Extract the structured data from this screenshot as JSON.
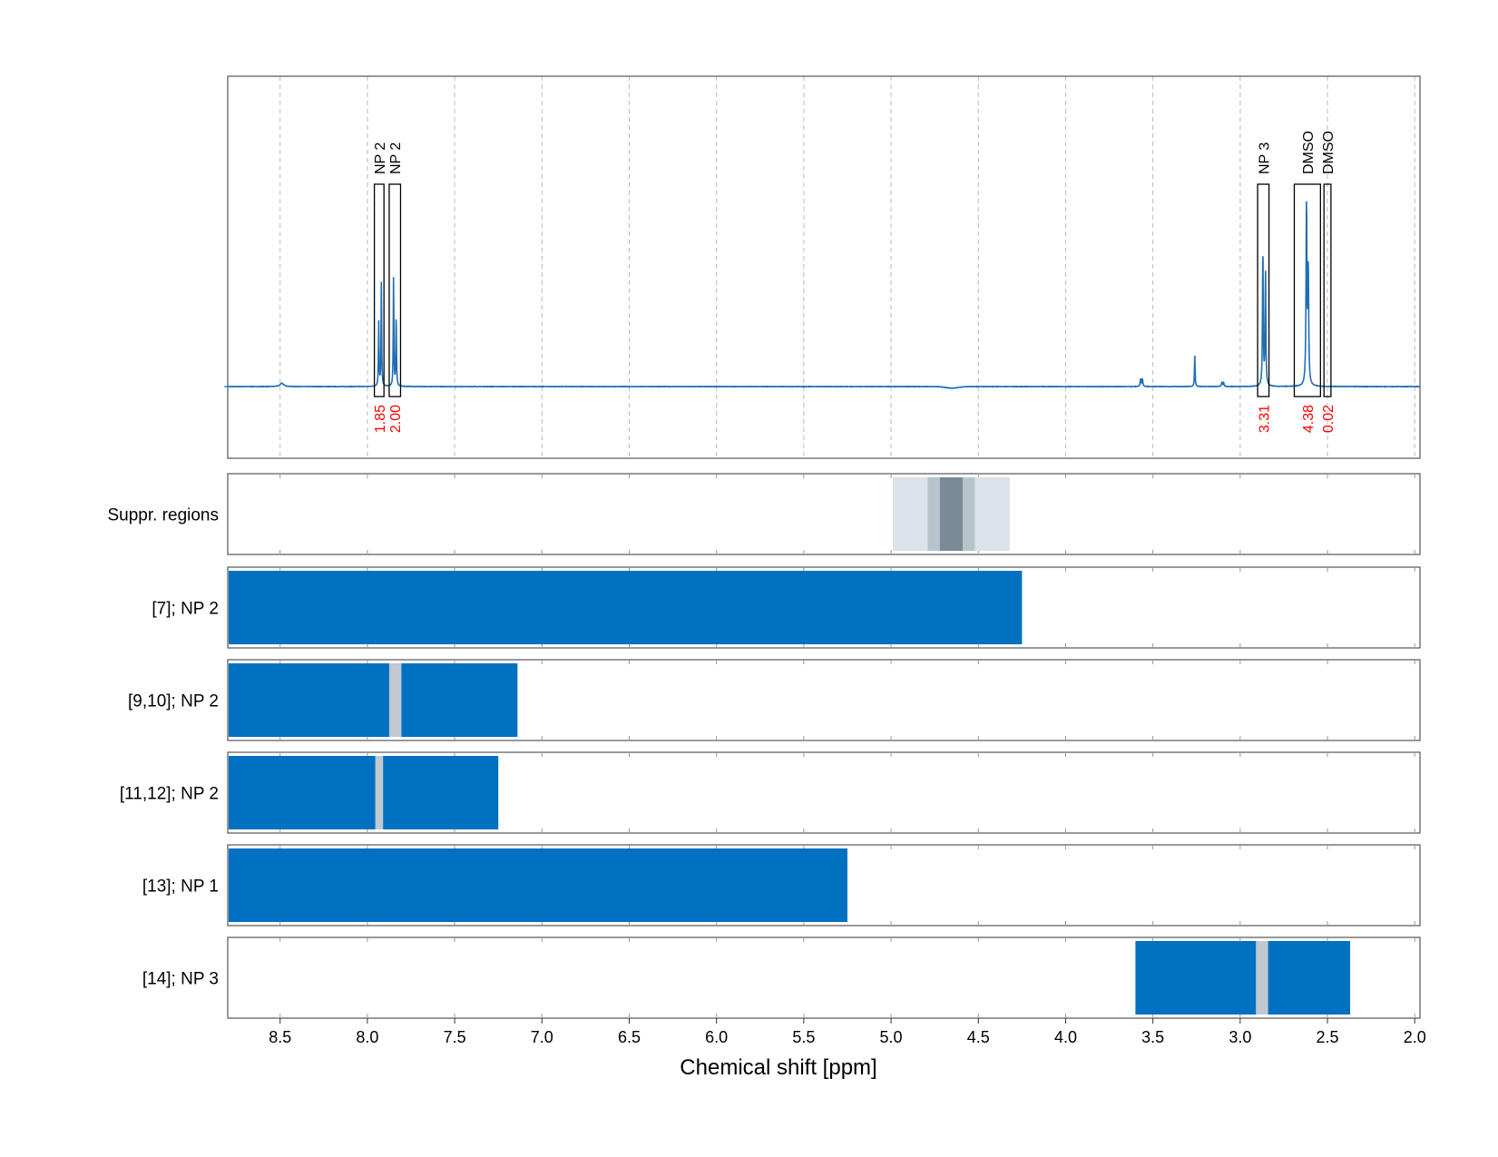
{
  "chart_data": {
    "type": "spectrum-with-bar-tracks",
    "xlabel": "Chemical shift [ppm]",
    "xlim": [
      8.8,
      1.97
    ],
    "x_ticks": [
      8.5,
      8.0,
      7.5,
      7.0,
      6.5,
      6.0,
      5.5,
      5.0,
      4.5,
      4.0,
      3.5,
      3.0,
      2.5,
      2.0
    ],
    "x_tick_labels": [
      "8.5",
      "8.0",
      "7.5",
      "7.0",
      "6.5",
      "6.0",
      "5.5",
      "5.0",
      "4.5",
      "4.0",
      "3.5",
      "3.0",
      "2.5",
      "2.0"
    ],
    "grid": "vertical dashed",
    "colors": {
      "spectrum": "#1f6fb5",
      "bar": "#0070c0",
      "bar_gap": "#c0c8d0",
      "suppr_light": "#dbe2e8",
      "suppr_mid": "#b7c4cc",
      "suppr_dark": "#7a8a96",
      "integral": "#ff0000",
      "frame": "#555555",
      "grid": "#bbbbbb"
    },
    "spectrum": {
      "baseline_noise": 0.002,
      "peaks": [
        {
          "ppm": 8.49,
          "height": 0.018,
          "width": 0.012
        },
        {
          "ppm": 7.935,
          "height": 0.34,
          "width": 0.002
        },
        {
          "ppm": 7.92,
          "height": 0.55,
          "width": 0.002
        },
        {
          "ppm": 7.85,
          "height": 0.58,
          "width": 0.002
        },
        {
          "ppm": 7.835,
          "height": 0.38,
          "width": 0.002
        },
        {
          "ppm": 3.57,
          "height": 0.04,
          "width": 0.003
        },
        {
          "ppm": 3.56,
          "height": 0.04,
          "width": 0.003
        },
        {
          "ppm": 3.26,
          "height": 0.17,
          "width": 0.002
        },
        {
          "ppm": 3.105,
          "height": 0.02,
          "width": 0.003
        },
        {
          "ppm": 3.095,
          "height": 0.02,
          "width": 0.003
        },
        {
          "ppm": 2.87,
          "height": 0.72,
          "width": 0.0025
        },
        {
          "ppm": 2.855,
          "height": 0.6,
          "width": 0.0025
        },
        {
          "ppm": 2.62,
          "height": 0.95,
          "width": 0.003
        },
        {
          "ppm": 2.61,
          "height": 0.6,
          "width": 0.003
        }
      ],
      "dip": {
        "ppm": 4.65,
        "depth": 0.008,
        "width": 0.05
      }
    },
    "annotations": [
      {
        "label": "NP 2",
        "integral": "1.85",
        "range": [
          7.96,
          7.905
        ]
      },
      {
        "label": "NP 2",
        "integral": "2.00",
        "range": [
          7.875,
          7.81
        ]
      },
      {
        "label": "NP 3",
        "integral": "3.31",
        "range": [
          2.9,
          2.835
        ]
      },
      {
        "label": "DMSO",
        "integral": "4.38",
        "range": [
          2.69,
          2.54
        ]
      },
      {
        "label": "DMSO",
        "integral": "0.02",
        "range": [
          2.52,
          2.48
        ]
      }
    ],
    "tracks": [
      {
        "label": "Suppr. regions",
        "segments": [
          {
            "from": 4.99,
            "to": 4.32,
            "shade": "light"
          },
          {
            "from": 4.79,
            "to": 4.52,
            "shade": "mid"
          },
          {
            "from": 4.72,
            "to": 4.59,
            "shade": "dark"
          }
        ]
      },
      {
        "label": "[7]; NP 2",
        "segments": [
          {
            "from": 8.8,
            "to": 4.25,
            "shade": "bar"
          }
        ]
      },
      {
        "label": "[9,10]; NP 2",
        "segments": [
          {
            "from": 8.8,
            "to": 7.14,
            "shade": "bar"
          },
          {
            "from": 7.875,
            "to": 7.805,
            "shade": "gap"
          }
        ]
      },
      {
        "label": "[11,12]; NP 2",
        "segments": [
          {
            "from": 8.8,
            "to": 7.25,
            "shade": "bar"
          },
          {
            "from": 7.955,
            "to": 7.91,
            "shade": "gap"
          }
        ]
      },
      {
        "label": "[13]; NP 1",
        "segments": [
          {
            "from": 8.8,
            "to": 5.25,
            "shade": "bar"
          }
        ]
      },
      {
        "label": "[14]; NP 3",
        "segments": [
          {
            "from": 3.6,
            "to": 2.37,
            "shade": "bar"
          },
          {
            "from": 2.91,
            "to": 2.84,
            "shade": "gap"
          }
        ]
      }
    ]
  }
}
